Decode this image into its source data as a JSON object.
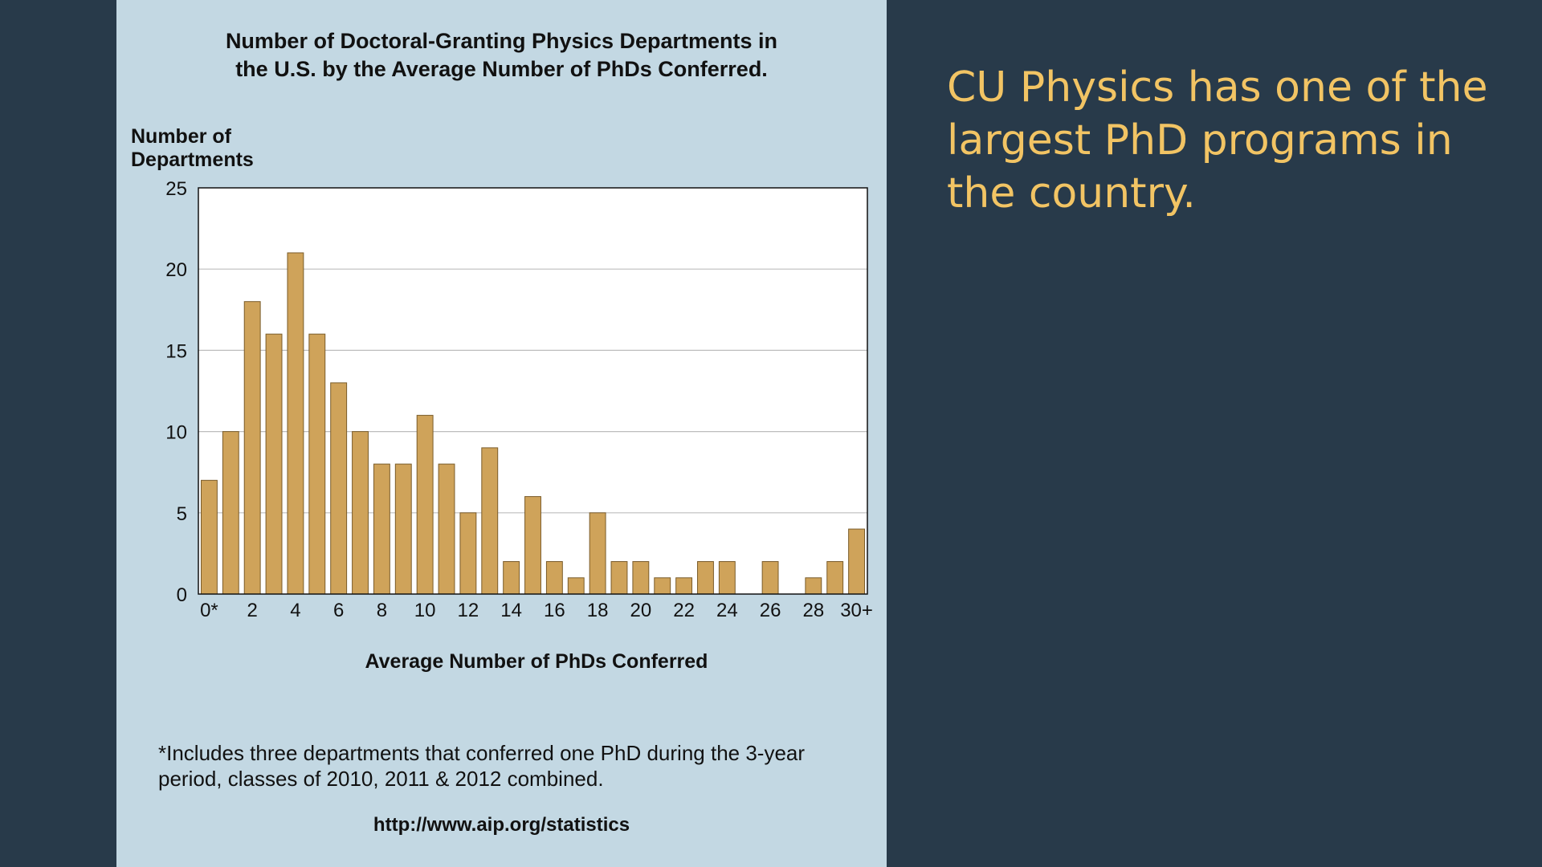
{
  "slide": {
    "headline": "CU Physics has one of the largest PhD programs in the country.",
    "background_color": "#283a4a",
    "panel_color": "#c3d8e3",
    "headline_color": "#f2c464"
  },
  "figure": {
    "title_line1": "Number of Doctoral-Granting Physics Departments in",
    "title_line2": "the U.S. by the Average Number of PhDs Conferred.",
    "footnote": "*Includes three departments that conferred one PhD during the 3-year period, classes of 2010, 2011 & 2012 combined.",
    "source": "http://www.aip.org/statistics"
  },
  "chart_data": {
    "type": "bar",
    "title": "Number of Doctoral-Granting Physics Departments in the U.S. by the Average Number of PhDs Conferred.",
    "ylabel_line1": "Number of",
    "ylabel_line2": "Departments",
    "xlabel": "Average Number of PhDs Conferred",
    "categories": [
      "0*",
      "1",
      "2",
      "3",
      "4",
      "5",
      "6",
      "7",
      "8",
      "9",
      "10",
      "11",
      "12",
      "13",
      "14",
      "15",
      "16",
      "17",
      "18",
      "19",
      "20",
      "21",
      "22",
      "23",
      "24",
      "25",
      "26",
      "27",
      "28",
      "29",
      "30+"
    ],
    "values": [
      7,
      10,
      18,
      16,
      21,
      16,
      13,
      10,
      8,
      8,
      11,
      8,
      5,
      9,
      2,
      6,
      2,
      1,
      5,
      2,
      2,
      1,
      1,
      2,
      2,
      0,
      2,
      0,
      1,
      2,
      4
    ],
    "x_tick_labels": [
      "0*",
      "2",
      "4",
      "6",
      "8",
      "10",
      "12",
      "14",
      "16",
      "18",
      "20",
      "22",
      "24",
      "26",
      "28",
      "30+"
    ],
    "x_tick_label_indices": [
      0,
      2,
      4,
      6,
      8,
      10,
      12,
      14,
      16,
      18,
      20,
      22,
      24,
      26,
      28,
      30
    ],
    "y_ticks": [
      0,
      5,
      10,
      15,
      20,
      25
    ],
    "ylim": [
      0,
      25
    ],
    "grid": true,
    "bar_color": "#cfa35a",
    "bar_edge_color": "#7a5c2a",
    "plot_background": "#ffffff"
  }
}
